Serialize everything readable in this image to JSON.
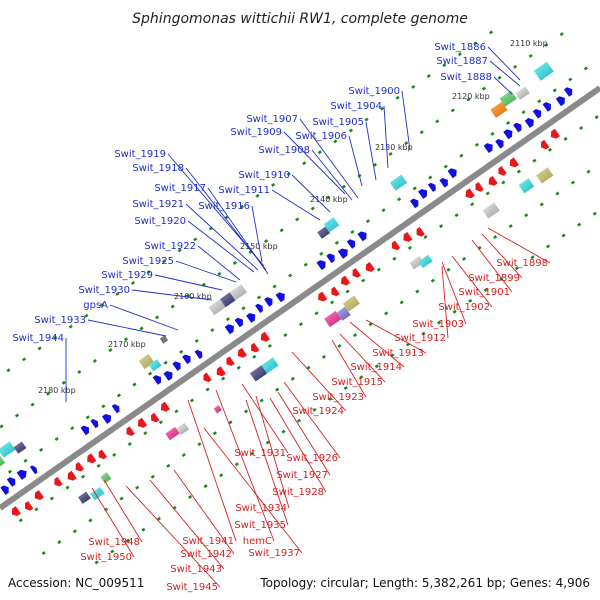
{
  "title": "Sphingomonas wittichii RW1, complete genome",
  "footer": {
    "accession": "Accession: NC_009511",
    "topology": "Topology: circular; Length: 5,382,261 bp; Genes: 4,906"
  },
  "scale_ticks": [
    "2110 kbp",
    "2120 kbp",
    "2130 kbp",
    "2140 kbp",
    "2150 kbp",
    "2160 kbp",
    "2170 kbp",
    "2180 kbp"
  ],
  "forward_genes": [
    "Swit_1886",
    "Swit_1887",
    "Swit_1888",
    "Swit_1900",
    "Swit_1904",
    "Swit_1907",
    "Swit_1905",
    "Swit_1909",
    "Swit_1906",
    "Swit_1908",
    "Swit_1919",
    "Swit_1918",
    "Swit_1910",
    "Swit_1917",
    "Swit_1911",
    "Swit_1921",
    "Swit_1916",
    "Swit_1920",
    "Swit_1922",
    "Swit_1925",
    "Swit_1929",
    "Swit_1930",
    "gpsA",
    "Swit_1933",
    "Swit_1944"
  ],
  "reverse_genes": [
    "Swit_1898",
    "Swit_1899",
    "Swit_1901",
    "Swit_1902",
    "Swit_1903",
    "Swit_1912",
    "Swit_1913",
    "Swit_1914",
    "Swit_1915",
    "Swit_1923",
    "Swit_1924",
    "Swit_1931",
    "Swit_1926",
    "Swit_1927",
    "Swit_1928",
    "Swit_1934",
    "Swit_1935",
    "hemC",
    "Swit_1941",
    "Swit_1937",
    "Swit_1948",
    "Swit_1942",
    "Swit_1950",
    "Swit_1943",
    "Swit_1945"
  ],
  "colors": {
    "forward_strand": "#1010e0",
    "reverse_strand": "#e81818",
    "backbone": "#8a8a8a",
    "tick": "#1a8a1a",
    "label_forward": "#1f2fc8",
    "label_reverse": "#d62020"
  }
}
